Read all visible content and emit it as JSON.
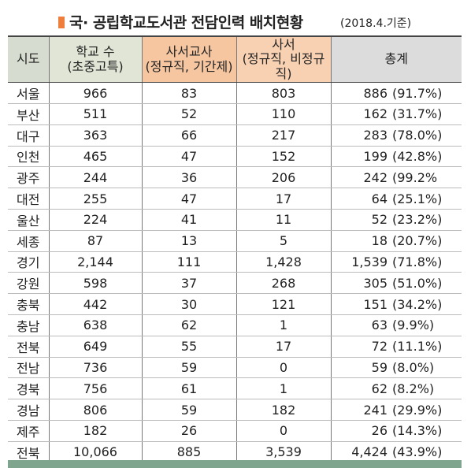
{
  "header": {
    "title": "국· 공립학교도서관 전담인력 배치현황",
    "note": "(2018.4.기준)"
  },
  "table": {
    "columns": [
      [
        "시도"
      ],
      [
        "학교 수",
        "(초중고특)"
      ],
      [
        "사서교사",
        "(정규직, 기간제)"
      ],
      [
        "사서",
        "(정규직, 비정규직)"
      ],
      [
        "총계"
      ]
    ],
    "rows": [
      [
        "서울",
        "966",
        "83",
        "803",
        "886",
        "(91.7%)"
      ],
      [
        "부산",
        "511",
        "52",
        "110",
        "162",
        "(31.7%)"
      ],
      [
        "대구",
        "363",
        "66",
        "217",
        "283",
        "(78.0%)"
      ],
      [
        "인천",
        "465",
        "47",
        "152",
        "199",
        "(42.8%)"
      ],
      [
        "광주",
        "244",
        "36",
        "206",
        "242",
        "(99.2%"
      ],
      [
        "대전",
        "255",
        "47",
        "17",
        "64",
        "(25.1%)"
      ],
      [
        "울산",
        "224",
        "41",
        "11",
        "52",
        "(23.2%)"
      ],
      [
        "세종",
        "87",
        "13",
        "5",
        "18",
        "(20.7%)"
      ],
      [
        "경기",
        "2,144",
        "111",
        "1,428",
        "1,539",
        "(71.8%)"
      ],
      [
        "강원",
        "598",
        "37",
        "268",
        "305",
        "(51.0%)"
      ],
      [
        "충북",
        "442",
        "30",
        "121",
        "151",
        "(34.2%)"
      ],
      [
        "충남",
        "638",
        "62",
        "1",
        "63",
        "(9.9%)"
      ],
      [
        "전북",
        "649",
        "55",
        "17",
        "72",
        "(11.1%)"
      ],
      [
        "전남",
        "736",
        "59",
        "0",
        "59",
        "(8.0%)"
      ],
      [
        "경북",
        "756",
        "61",
        "1",
        "62",
        "(8.2%)"
      ],
      [
        "경남",
        "806",
        "59",
        "182",
        "241",
        "(29.9%)"
      ],
      [
        "제주",
        "182",
        "26",
        "0",
        "26",
        "(14.3%)"
      ],
      [
        "전북",
        "10,066",
        "885",
        "3,539",
        "4,424",
        "(43.9%)"
      ]
    ]
  }
}
